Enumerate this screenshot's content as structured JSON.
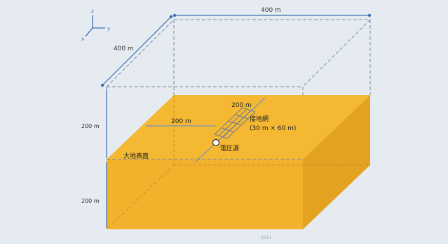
{
  "axes": {
    "z": "z",
    "y": "y",
    "x": "x"
  },
  "dimensions": {
    "top_width": "400 m",
    "depth": "400 m",
    "upper_height": "200 m",
    "lower_height": "200 m",
    "grid_left": "200 m",
    "grid_right": "200 m"
  },
  "labels": {
    "grid_mesh": "接地網",
    "grid_mesh_size": "(30 m × 60 m)",
    "voltage_source": "電圧源",
    "ground_surface": "大地表面",
    "bottom_note": "2011"
  },
  "colors": {
    "background": "#e5ebf0",
    "earth_front": "#f3b22c",
    "earth_top": "#f5b833",
    "earth_side": "#e3a21f",
    "dim_blue": "#3a6fb0",
    "edge_grey": "#7c8ea3"
  }
}
